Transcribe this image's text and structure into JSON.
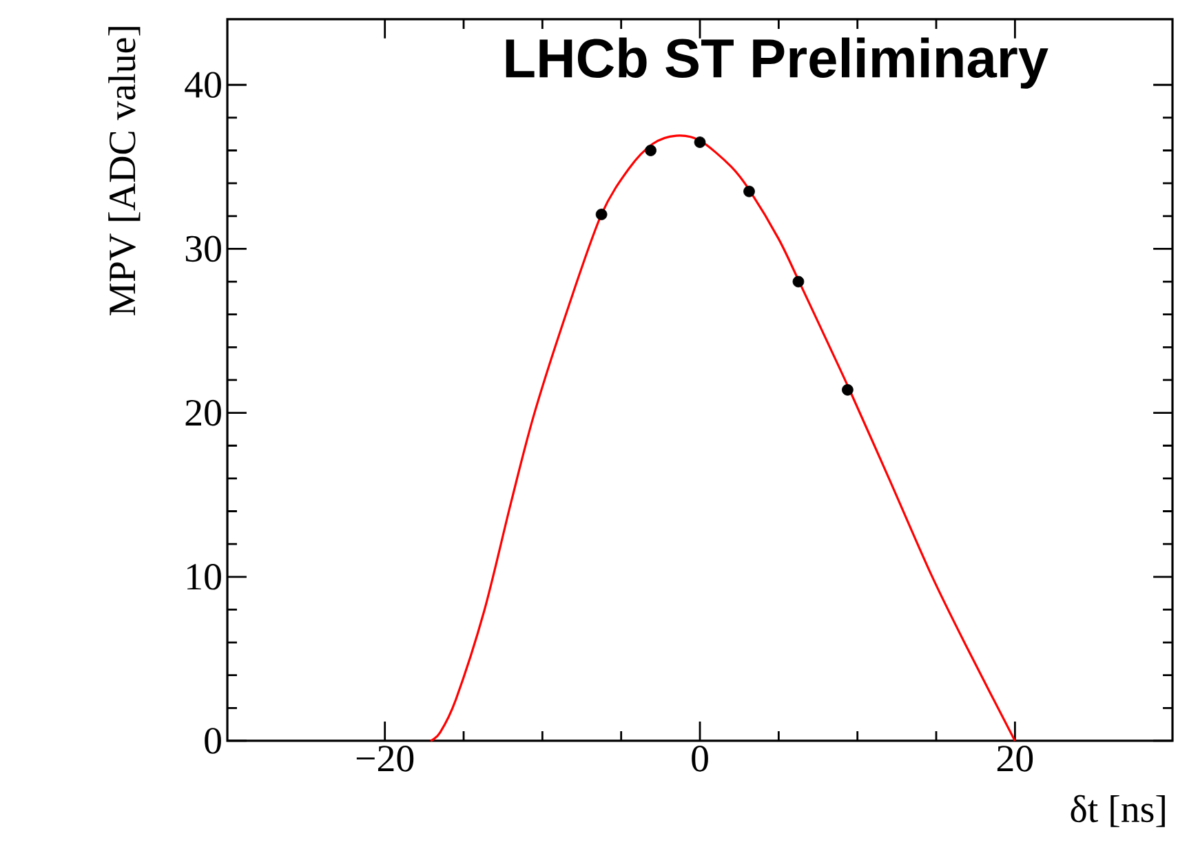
{
  "chart_data": {
    "type": "scatter",
    "title": "LHCb ST Preliminary",
    "xlabel": "δt [ns]",
    "ylabel": "MPV [ADC value]",
    "xlim": [
      -30,
      30
    ],
    "ylim": [
      0,
      44
    ],
    "xticks": [
      {
        "value": -20,
        "label": "−20"
      },
      0,
      20
    ],
    "yticks": [
      0,
      10,
      20,
      30,
      40
    ],
    "series": [
      {
        "color": "#000000",
        "marker": "circle",
        "x": [
          -6.25,
          -3.125,
          0,
          3.125,
          6.25,
          9.375
        ],
        "values": [
          32.1,
          36.0,
          36.5,
          33.5,
          28.0,
          21.4
        ]
      },
      {
        "type": "line",
        "color": "#ff0000",
        "marker": "none",
        "line_style": "solid",
        "x": [
          -17.1,
          -16.5,
          -15.5,
          -13.7,
          -12,
          -10.5,
          -8.3,
          -6.25,
          -4.5,
          -3,
          -1.5,
          0,
          2,
          3.2,
          5,
          6.3,
          8.1,
          9.5,
          12,
          14.7,
          17,
          20
        ],
        "values": [
          0,
          0.5,
          2.5,
          7.9,
          14.5,
          20,
          26.6,
          32.1,
          34.9,
          36.4,
          36.9,
          36.6,
          35,
          33.5,
          30.6,
          28,
          24.3,
          21.4,
          16,
          10.1,
          5.6,
          0
        ]
      }
    ]
  }
}
